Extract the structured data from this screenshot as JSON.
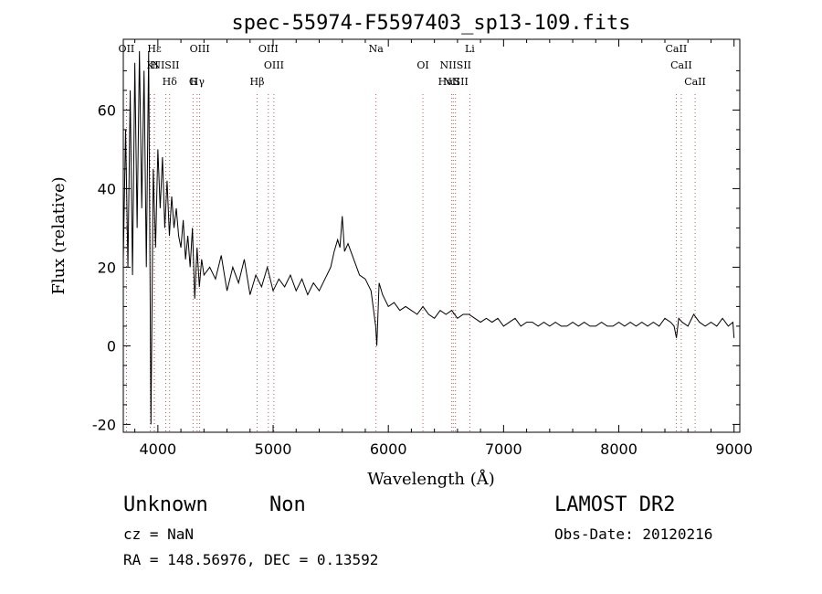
{
  "chart_data": {
    "type": "line",
    "title": "spec-55974-F5597403_sp13-109.fits",
    "xlabel": "Wavelength (Å)",
    "ylabel": "Flux (relative)",
    "xlim": [
      3700,
      9050
    ],
    "ylim": [
      -22,
      78
    ],
    "xticks": [
      4000,
      5000,
      6000,
      7000,
      8000,
      9000
    ],
    "yticks": [
      -20,
      0,
      20,
      40,
      60
    ],
    "grid": false,
    "series": [
      {
        "x": [
          3700,
          3720,
          3740,
          3760,
          3780,
          3800,
          3820,
          3840,
          3860,
          3880,
          3900,
          3920,
          3940,
          3960,
          3980,
          4000,
          4020,
          4040,
          4060,
          4080,
          4100,
          4120,
          4140,
          4160,
          4180,
          4200,
          4220,
          4240,
          4260,
          4280,
          4300,
          4320,
          4340,
          4360,
          4380,
          4400,
          4450,
          4500,
          4550,
          4600,
          4650,
          4700,
          4750,
          4800,
          4850,
          4900,
          4950,
          5000,
          5050,
          5100,
          5150,
          5200,
          5250,
          5300,
          5350,
          5400,
          5450,
          5500,
          5530,
          5560,
          5580,
          5600,
          5620,
          5650,
          5700,
          5750,
          5800,
          5850,
          5890,
          5900,
          5920,
          5950,
          6000,
          6050,
          6100,
          6150,
          6200,
          6250,
          6300,
          6350,
          6400,
          6450,
          6500,
          6550,
          6600,
          6650,
          6700,
          6750,
          6800,
          6850,
          6900,
          6950,
          7000,
          7050,
          7100,
          7150,
          7200,
          7250,
          7300,
          7350,
          7400,
          7450,
          7500,
          7550,
          7600,
          7650,
          7700,
          7750,
          7800,
          7850,
          7900,
          7950,
          8000,
          8050,
          8100,
          8150,
          8200,
          8250,
          8300,
          8350,
          8400,
          8450,
          8480,
          8500,
          8520,
          8550,
          8600,
          8650,
          8700,
          8750,
          8800,
          8850,
          8900,
          8950,
          8990,
          9000
        ],
        "y": [
          22,
          55,
          20,
          65,
          18,
          72,
          30,
          75,
          35,
          70,
          20,
          75,
          -20,
          45,
          25,
          50,
          35,
          48,
          30,
          42,
          28,
          38,
          30,
          35,
          28,
          25,
          32,
          22,
          28,
          20,
          30,
          12,
          25,
          15,
          22,
          18,
          20,
          17,
          23,
          14,
          20,
          16,
          22,
          13,
          18,
          15,
          20,
          14,
          17,
          15,
          18,
          14,
          17,
          13,
          16,
          14,
          17,
          20,
          24,
          27,
          25,
          33,
          24,
          26,
          22,
          18,
          17,
          14,
          5,
          0,
          16,
          13,
          10,
          11,
          9,
          10,
          9,
          8,
          10,
          8,
          7,
          9,
          8,
          9,
          7,
          8,
          8,
          7,
          6,
          7,
          6,
          7,
          5,
          6,
          7,
          5,
          6,
          6,
          5,
          6,
          5,
          6,
          5,
          5,
          6,
          5,
          6,
          5,
          5,
          6,
          5,
          5,
          6,
          5,
          6,
          5,
          6,
          5,
          6,
          5,
          7,
          6,
          5,
          2,
          7,
          6,
          5,
          8,
          6,
          5,
          6,
          5,
          7,
          5,
          6,
          2
        ]
      }
    ],
    "annotations": [
      {
        "label": "Hε",
        "wl": 3970
      },
      {
        "label": "K",
        "wl": 3934
      },
      {
        "label": "Hδ",
        "wl": 4102
      },
      {
        "label": "OII",
        "wl": 3727
      },
      {
        "label": "NISII",
        "wl": 4068
      },
      {
        "label": "Hγ",
        "wl": 4341
      },
      {
        "label": "OIII",
        "wl": 4363
      },
      {
        "label": "H",
        "wl": 3969
      },
      {
        "label": "G",
        "wl": 4305
      },
      {
        "label": "OIII",
        "wl": 4959
      },
      {
        "label": "OIII",
        "wl": 5007
      },
      {
        "label": "Hβ",
        "wl": 4861
      },
      {
        "label": "Na",
        "wl": 5893
      },
      {
        "label": "OI",
        "wl": 6300
      },
      {
        "label": "NII",
        "wl": 6548
      },
      {
        "label": "Li",
        "wl": 6707
      },
      {
        "label": "NIISII",
        "wl": 6583
      },
      {
        "label": "HαSII",
        "wl": 6563
      },
      {
        "label": "CaII",
        "wl": 8498
      },
      {
        "label": "CaII",
        "wl": 8542
      },
      {
        "label": "CaII",
        "wl": 8662
      }
    ]
  },
  "info": {
    "class": "Unknown",
    "subclass": "Non",
    "survey": "LAMOST DR2",
    "cz": "cz = NaN",
    "obs_date": "Obs-Date: 20120216",
    "radec": "RA = 148.56976, DEC =   0.13592"
  }
}
